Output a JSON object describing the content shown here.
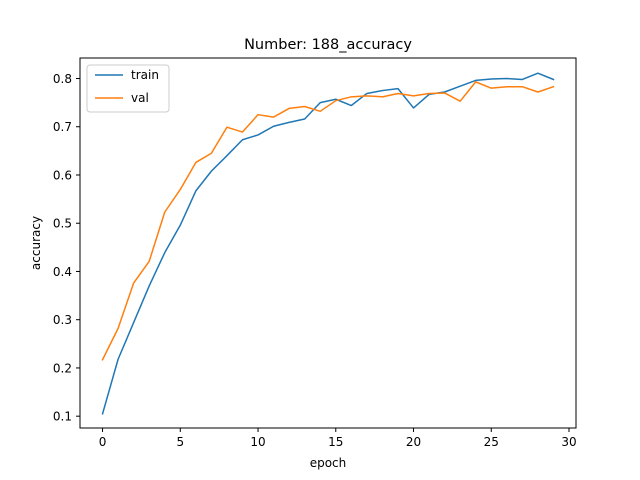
{
  "chart_data": {
    "type": "line",
    "title": "Number: 188_accuracy",
    "xlabel": "epoch",
    "ylabel": "accuracy",
    "xlim": [
      -1.45,
      30.45
    ],
    "ylim": [
      0.0755,
      0.8425
    ],
    "xticks": [
      0,
      5,
      10,
      15,
      20,
      25,
      30
    ],
    "yticks": [
      0.1,
      0.2,
      0.3,
      0.4,
      0.5,
      0.6,
      0.7,
      0.8
    ],
    "xtick_labels": [
      "0",
      "5",
      "10",
      "15",
      "20",
      "25",
      "30"
    ],
    "ytick_labels": [
      "0.1",
      "0.2",
      "0.3",
      "0.4",
      "0.5",
      "0.6",
      "0.7",
      "0.8"
    ],
    "grid": false,
    "legend_position": "top-left",
    "x": [
      0,
      1,
      2,
      3,
      4,
      5,
      6,
      7,
      8,
      9,
      10,
      11,
      12,
      13,
      14,
      15,
      16,
      17,
      18,
      19,
      20,
      21,
      22,
      23,
      24,
      25,
      26,
      27,
      28,
      29
    ],
    "series": [
      {
        "name": "train",
        "color": "#1f77b4",
        "values": [
          0.105,
          0.218,
          0.294,
          0.37,
          0.439,
          0.496,
          0.567,
          0.608,
          0.64,
          0.673,
          0.683,
          0.701,
          0.709,
          0.716,
          0.75,
          0.757,
          0.744,
          0.769,
          0.775,
          0.779,
          0.739,
          0.767,
          0.772,
          0.784,
          0.796,
          0.799,
          0.8,
          0.798,
          0.811,
          0.798
        ]
      },
      {
        "name": "val",
        "color": "#ff7f0e",
        "values": [
          0.217,
          0.282,
          0.376,
          0.421,
          0.523,
          0.57,
          0.626,
          0.645,
          0.699,
          0.689,
          0.725,
          0.72,
          0.738,
          0.742,
          0.732,
          0.754,
          0.762,
          0.764,
          0.762,
          0.769,
          0.764,
          0.769,
          0.77,
          0.753,
          0.793,
          0.78,
          0.783,
          0.783,
          0.772,
          0.783
        ]
      }
    ]
  }
}
